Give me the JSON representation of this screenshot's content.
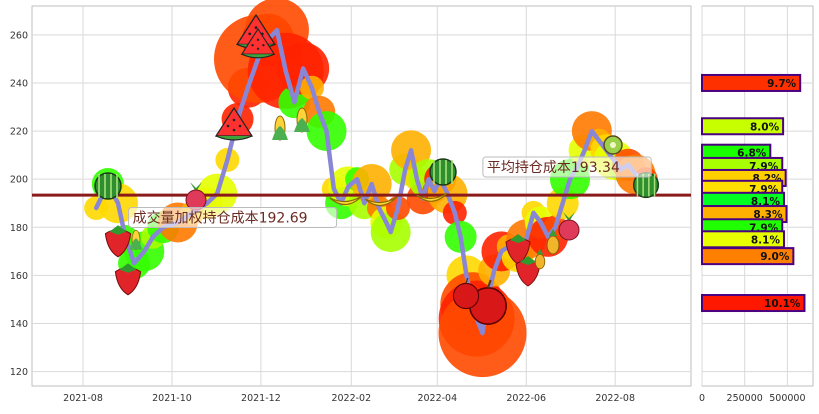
{
  "colors": {
    "plot_bg": "#ffffff",
    "grid": "#d9d9d9",
    "price_line": "#8a86d6",
    "cost_line": "#8b1a1a",
    "frame": "#b0b0b0",
    "bar_edge": "#4b0082"
  },
  "icons": [
    "watermelon-icon",
    "strawberry-icon",
    "banana-icon",
    "corn-icon",
    "radish-icon",
    "apple-icon",
    "kiwi-icon",
    "pineapple-icon"
  ],
  "chart_data": [
    {
      "type": "line",
      "title": "",
      "xlabel": "",
      "ylabel": "",
      "x_ticks": [
        "2021-08",
        "2021-10",
        "2021-12",
        "2022-02",
        "2022-04",
        "2022-06",
        "2022-08"
      ],
      "y_ticks": [
        120,
        140,
        160,
        180,
        200,
        220,
        240,
        260
      ],
      "ylim": [
        114,
        272
      ],
      "grid": true,
      "series": [
        {
          "values": [
            [
              "2021-08-10",
              188
            ],
            [
              "2021-08-18",
              198
            ],
            [
              "2021-08-25",
              190
            ],
            [
              "2021-08-30",
              176
            ],
            [
              "2021-09-05",
              165
            ],
            [
              "2021-09-12",
              170
            ],
            [
              "2021-09-18",
              176
            ],
            [
              "2021-09-25",
              180
            ],
            [
              "2021-10-05",
              182
            ],
            [
              "2021-10-15",
              186
            ],
            [
              "2021-10-25",
              190
            ],
            [
              "2021-11-01",
              194
            ],
            [
              "2021-11-08",
              208
            ],
            [
              "2021-11-15",
              225
            ],
            [
              "2021-11-22",
              238
            ],
            [
              "2021-11-29",
              250
            ],
            [
              "2021-12-06",
              258
            ],
            [
              "2021-12-12",
              262
            ],
            [
              "2021-12-18",
              245
            ],
            [
              "2021-12-24",
              232
            ],
            [
              "2021-12-30",
              246
            ],
            [
              "2022-01-05",
              238
            ],
            [
              "2022-01-10",
              228
            ],
            [
              "2022-01-15",
              220
            ],
            [
              "2022-01-20",
              196
            ],
            [
              "2022-01-25",
              190
            ],
            [
              "2022-01-30",
              197
            ],
            [
              "2022-02-05",
              200
            ],
            [
              "2022-02-10",
              190
            ],
            [
              "2022-02-15",
              198
            ],
            [
              "2022-02-20",
              188
            ],
            [
              "2022-02-25",
              182
            ],
            [
              "2022-02-28",
              178
            ],
            [
              "2022-03-05",
              188
            ],
            [
              "2022-03-10",
              204
            ],
            [
              "2022-03-14",
              212
            ],
            [
              "2022-03-18",
              200
            ],
            [
              "2022-03-22",
              192
            ],
            [
              "2022-03-26",
              200
            ],
            [
              "2022-03-30",
              195
            ],
            [
              "2022-04-03",
              200
            ],
            [
              "2022-04-08",
              194
            ],
            [
              "2022-04-13",
              186
            ],
            [
              "2022-04-17",
              176
            ],
            [
              "2022-04-21",
              160
            ],
            [
              "2022-04-25",
              148
            ],
            [
              "2022-04-28",
              142
            ],
            [
              "2022-05-02",
              136
            ],
            [
              "2022-05-06",
              152
            ],
            [
              "2022-05-10",
              162
            ],
            [
              "2022-05-15",
              170
            ],
            [
              "2022-05-20",
              172
            ],
            [
              "2022-05-26",
              168
            ],
            [
              "2022-06-01",
              175
            ],
            [
              "2022-06-06",
              186
            ],
            [
              "2022-06-11",
              182
            ],
            [
              "2022-06-16",
              176
            ],
            [
              "2022-06-21",
              180
            ],
            [
              "2022-06-26",
              190
            ],
            [
              "2022-07-01",
              200
            ],
            [
              "2022-07-06",
              205
            ],
            [
              "2022-07-11",
              212
            ],
            [
              "2022-07-16",
              220
            ],
            [
              "2022-07-21",
              216
            ],
            [
              "2022-07-26",
              212
            ],
            [
              "2022-07-31",
              208
            ],
            [
              "2022-08-05",
              204
            ],
            [
              "2022-08-10",
              206
            ],
            [
              "2022-08-15",
              202
            ],
            [
              "2022-08-22",
              200
            ]
          ]
        }
      ],
      "reference_lines": [
        {
          "value": 193.34,
          "label": "平均持仓成本193.34"
        }
      ],
      "annotations": [
        {
          "text": "成交量加权持仓成本192.69",
          "x": "2021-09-04",
          "y": 182
        },
        {
          "text": "平均持仓成本193.34",
          "x": "2022-05-05",
          "y": 203
        }
      ]
    },
    {
      "type": "bar",
      "orientation": "horizontal",
      "x_ticks": [
        0,
        250000,
        500000
      ],
      "xlim": [
        0,
        650000
      ],
      "bars": [
        {
          "price": 240,
          "volume": 575000,
          "label": "9.7%",
          "color": "#ff3000"
        },
        {
          "price": 222,
          "volume": 475000,
          "label": "8.0%",
          "color": "#c8ff00"
        },
        {
          "price": 211,
          "volume": 400000,
          "label": "6.8%",
          "color": "#19ff00"
        },
        {
          "price": 205.5,
          "volume": 470000,
          "label": "7.9%",
          "color": "#a8ff00"
        },
        {
          "price": 200.5,
          "volume": 490000,
          "label": "8.2%",
          "color": "#ffd000"
        },
        {
          "price": 196,
          "volume": 470000,
          "label": "7.9%",
          "color": "#ffe000"
        },
        {
          "price": 191,
          "volume": 480000,
          "label": "8.1%",
          "color": "#00ff20"
        },
        {
          "price": 185.5,
          "volume": 495000,
          "label": "8.3%",
          "color": "#ffb000"
        },
        {
          "price": 180,
          "volume": 470000,
          "label": "7.9%",
          "color": "#20ff00"
        },
        {
          "price": 175,
          "volume": 480000,
          "label": "8.1%",
          "color": "#e8ff00"
        },
        {
          "price": 168,
          "volume": 535000,
          "label": "9.0%",
          "color": "#ff8000"
        },
        {
          "price": 148.5,
          "volume": 600000,
          "label": "10.1%",
          "color": "#ff1800"
        }
      ]
    }
  ]
}
